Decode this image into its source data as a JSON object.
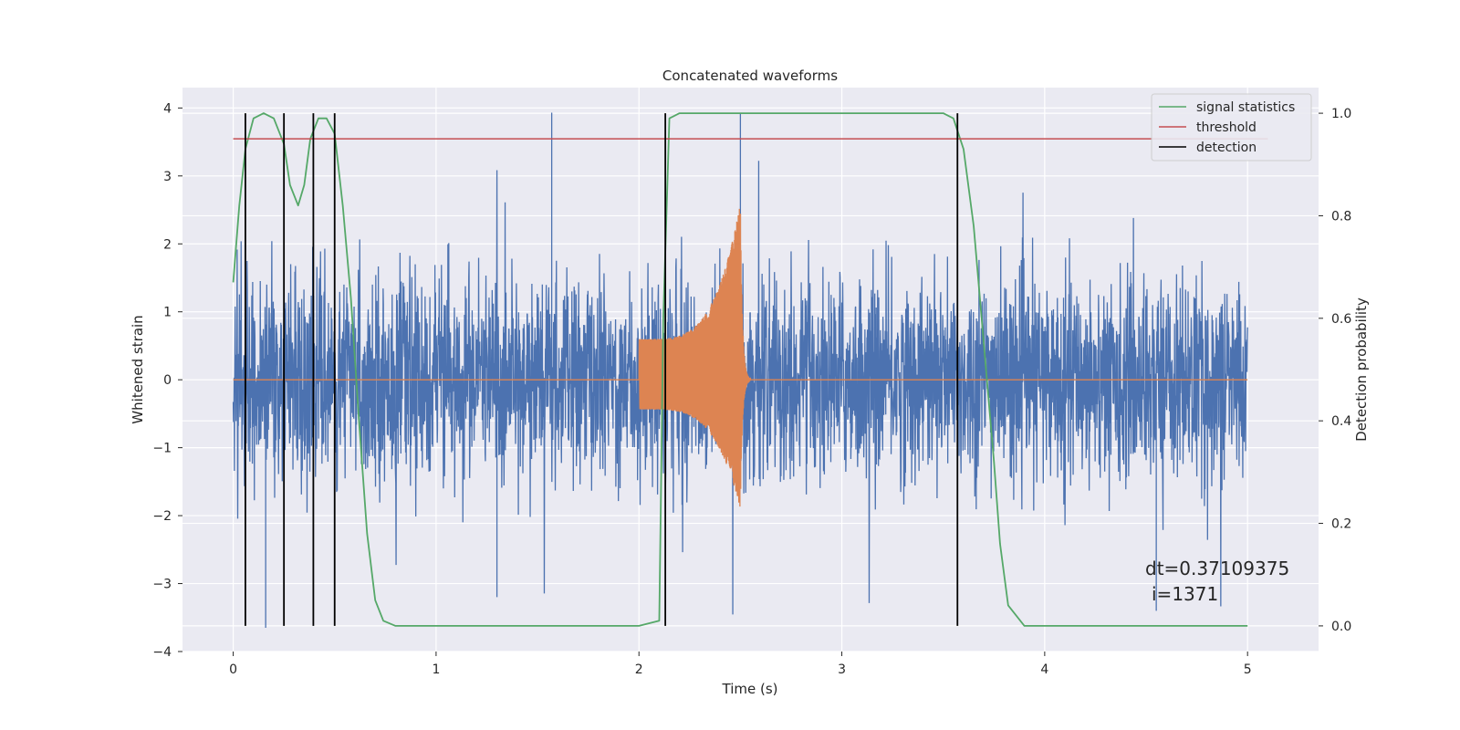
{
  "chart_data": {
    "type": "line",
    "title": "Concatenated waveforms",
    "xlabel": "Time (s)",
    "ylabel": "Whitened strain",
    "y2label": "Detection probability",
    "xlim": [
      -0.25,
      5.35
    ],
    "ylim": [
      -4,
      4.3
    ],
    "y2lim": [
      -0.05,
      1.05
    ],
    "xticks": [
      0,
      1,
      2,
      3,
      4,
      5
    ],
    "yticks": [
      -4,
      -3,
      -2,
      -1,
      0,
      1,
      2,
      3,
      4
    ],
    "y2ticks": [
      0.0,
      0.2,
      0.4,
      0.6,
      0.8,
      1.0
    ],
    "xtick_labels": [
      "0",
      "1",
      "2",
      "3",
      "4",
      "5"
    ],
    "ytick_labels": [
      "−4",
      "−3",
      "−2",
      "−1",
      "0",
      "1",
      "2",
      "3",
      "4"
    ],
    "y2tick_labels": [
      "0.0",
      "0.2",
      "0.4",
      "0.6",
      "0.8",
      "1.0"
    ],
    "grid": true,
    "legend_position": "top-right",
    "legend": [
      {
        "name": "signal statistics",
        "color": "#55a868"
      },
      {
        "name": "threshold",
        "color": "#c44e52"
      },
      {
        "name": "detection",
        "color": "#000000"
      }
    ],
    "noise": {
      "color": "#4c72b0",
      "x_start": 0.0,
      "x_end": 5.0,
      "typical_amplitude": 1.0,
      "peak_max": 3.93,
      "peak_min": -3.65
    },
    "signal_injection": {
      "color": "#dd8452",
      "chirp_start": 2.0,
      "chirp_peak": 2.5,
      "chirp_end": 2.55,
      "start_amplitude": 0.6,
      "peak_max": 2.6,
      "peak_min": -1.9
    },
    "signal_statistics": {
      "axis": "right",
      "x": [
        0.0,
        0.03,
        0.06,
        0.1,
        0.15,
        0.2,
        0.25,
        0.28,
        0.32,
        0.35,
        0.38,
        0.42,
        0.46,
        0.5,
        0.54,
        0.58,
        0.62,
        0.66,
        0.7,
        0.74,
        0.8,
        1.0,
        1.5,
        2.0,
        2.1,
        2.12,
        2.15,
        2.2,
        2.5,
        3.0,
        3.5,
        3.55,
        3.6,
        3.65,
        3.7,
        3.75,
        3.78,
        3.82,
        3.9,
        4.5,
        5.0
      ],
      "y": [
        0.67,
        0.82,
        0.93,
        0.99,
        1.0,
        0.99,
        0.94,
        0.86,
        0.82,
        0.86,
        0.95,
        0.99,
        0.99,
        0.96,
        0.82,
        0.64,
        0.4,
        0.18,
        0.05,
        0.01,
        0.0,
        0.0,
        0.0,
        0.0,
        0.01,
        0.6,
        0.99,
        1.0,
        1.0,
        1.0,
        1.0,
        0.99,
        0.93,
        0.78,
        0.55,
        0.32,
        0.16,
        0.04,
        0.0,
        0.0,
        0.0
      ]
    },
    "threshold": {
      "axis": "right",
      "value": 0.95,
      "x_start": 0.0,
      "x_end": 5.1
    },
    "detections": [
      0.06,
      0.25,
      0.395,
      0.5,
      2.13,
      3.57
    ],
    "detection_y_range": [
      0.0,
      1.0
    ],
    "annotation": {
      "line1": "dt=0.37109375",
      "line2": "i=1371",
      "x": 4.5,
      "y": -2.8
    }
  }
}
